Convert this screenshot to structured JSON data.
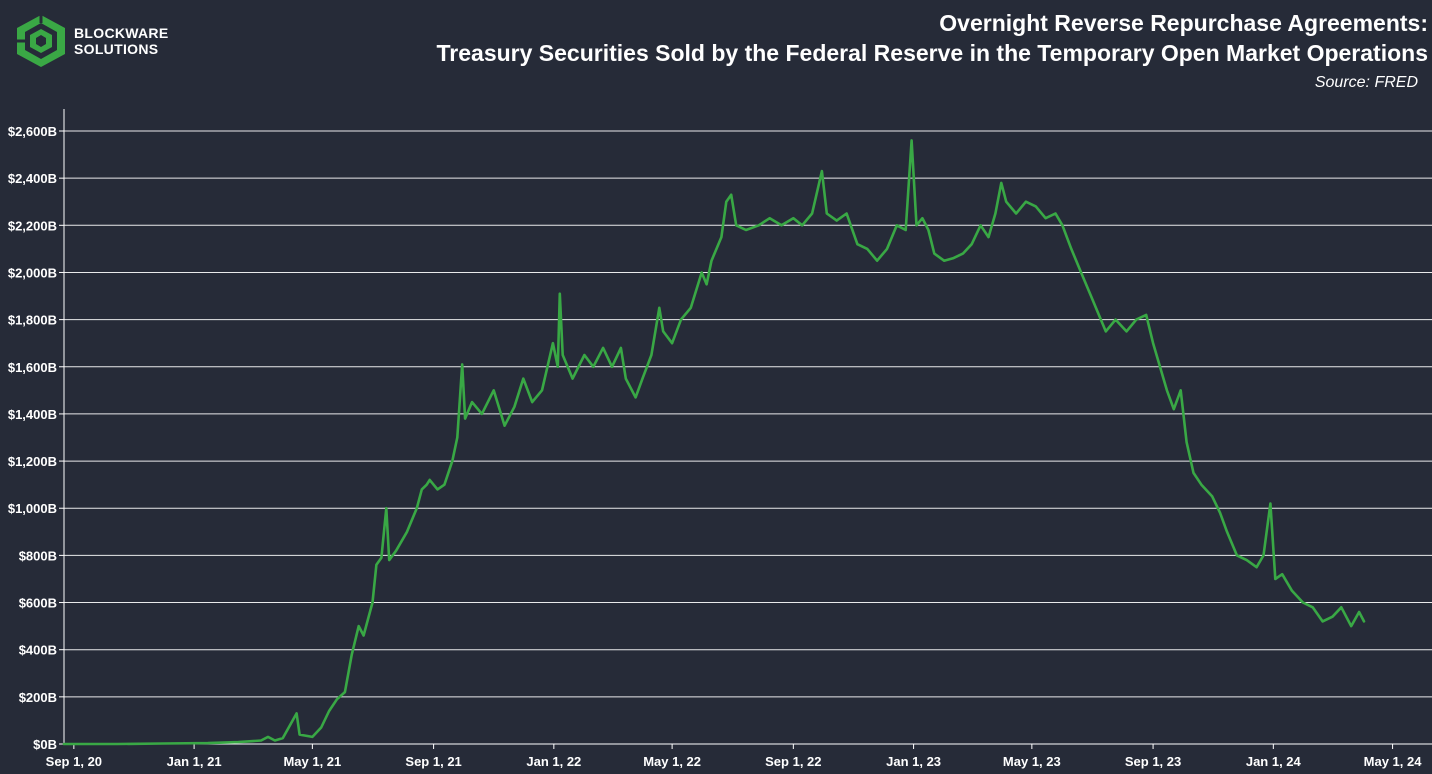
{
  "logo": {
    "line1": "BLOCKWARE",
    "line2": "SOLUTIONS"
  },
  "header": {
    "title_line1": "Overnight Reverse Repurchase Agreements:",
    "title_line2": "Treasury Securities Sold by the Federal Reserve in the Temporary Open Market Operations",
    "source": "Source: FRED"
  },
  "colors": {
    "background": "#262b38",
    "line": "#39a845",
    "grid": "#ffffff",
    "text": "#ffffff"
  },
  "chart_data": {
    "type": "line",
    "title": "Overnight Reverse Repurchase Agreements: Treasury Securities Sold by the Federal Reserve in the Temporary Open Market Operations",
    "xlabel": "",
    "ylabel": "",
    "ylim": [
      0,
      2600
    ],
    "xlim": [
      "2020-08-22",
      "2024-06-10"
    ],
    "grid": true,
    "y_ticks": [
      {
        "value": 0,
        "label": "$0B"
      },
      {
        "value": 200,
        "label": "$200B"
      },
      {
        "value": 400,
        "label": "$400B"
      },
      {
        "value": 600,
        "label": "$600B"
      },
      {
        "value": 800,
        "label": "$800B"
      },
      {
        "value": 1000,
        "label": "$1,000B"
      },
      {
        "value": 1200,
        "label": "$1,200B"
      },
      {
        "value": 1400,
        "label": "$1,400B"
      },
      {
        "value": 1600,
        "label": "$1,600B"
      },
      {
        "value": 1800,
        "label": "$1,800B"
      },
      {
        "value": 2000,
        "label": "$2,000B"
      },
      {
        "value": 2200,
        "label": "$2,200B"
      },
      {
        "value": 2400,
        "label": "$2,400B"
      },
      {
        "value": 2600,
        "label": "$2,600B"
      }
    ],
    "x_ticks": [
      {
        "date": "2020-09-01",
        "label": "Sep 1, 20"
      },
      {
        "date": "2021-01-01",
        "label": "Jan 1, 21"
      },
      {
        "date": "2021-05-01",
        "label": "May 1, 21"
      },
      {
        "date": "2021-09-01",
        "label": "Sep 1, 21"
      },
      {
        "date": "2022-01-01",
        "label": "Jan 1, 22"
      },
      {
        "date": "2022-05-01",
        "label": "May 1, 22"
      },
      {
        "date": "2022-09-01",
        "label": "Sep 1, 22"
      },
      {
        "date": "2023-01-01",
        "label": "Jan 1, 23"
      },
      {
        "date": "2023-05-01",
        "label": "May 1, 23"
      },
      {
        "date": "2023-09-01",
        "label": "Sep 1, 23"
      },
      {
        "date": "2024-01-01",
        "label": "Jan 1, 24"
      },
      {
        "date": "2024-05-01",
        "label": "May 1, 24"
      }
    ],
    "series": [
      {
        "values": [
          [
            "2020-08-22",
            0
          ],
          [
            "2020-10-15",
            0
          ],
          [
            "2020-12-01",
            2
          ],
          [
            "2021-01-15",
            4
          ],
          [
            "2021-02-15",
            8
          ],
          [
            "2021-03-10",
            15
          ],
          [
            "2021-03-17",
            30
          ],
          [
            "2021-03-24",
            15
          ],
          [
            "2021-04-01",
            25
          ],
          [
            "2021-04-15",
            130
          ],
          [
            "2021-04-18",
            40
          ],
          [
            "2021-05-01",
            30
          ],
          [
            "2021-05-10",
            70
          ],
          [
            "2021-05-18",
            140
          ],
          [
            "2021-05-26",
            190
          ],
          [
            "2021-06-03",
            220
          ],
          [
            "2021-06-10",
            380
          ],
          [
            "2021-06-17",
            500
          ],
          [
            "2021-06-22",
            460
          ],
          [
            "2021-07-01",
            600
          ],
          [
            "2021-07-05",
            760
          ],
          [
            "2021-07-10",
            790
          ],
          [
            "2021-07-15",
            1000
          ],
          [
            "2021-07-18",
            780
          ],
          [
            "2021-07-25",
            820
          ],
          [
            "2021-08-05",
            900
          ],
          [
            "2021-08-15",
            1000
          ],
          [
            "2021-08-20",
            1080
          ],
          [
            "2021-08-25",
            1100
          ],
          [
            "2021-08-28",
            1120
          ],
          [
            "2021-09-05",
            1080
          ],
          [
            "2021-09-12",
            1100
          ],
          [
            "2021-09-20",
            1200
          ],
          [
            "2021-09-25",
            1300
          ],
          [
            "2021-09-30",
            1610
          ],
          [
            "2021-10-03",
            1380
          ],
          [
            "2021-10-10",
            1450
          ],
          [
            "2021-10-20",
            1400
          ],
          [
            "2021-11-01",
            1500
          ],
          [
            "2021-11-12",
            1350
          ],
          [
            "2021-11-22",
            1430
          ],
          [
            "2021-12-01",
            1550
          ],
          [
            "2021-12-10",
            1450
          ],
          [
            "2021-12-20",
            1500
          ],
          [
            "2021-12-31",
            1700
          ],
          [
            "2022-01-05",
            1600
          ],
          [
            "2022-01-07",
            1910
          ],
          [
            "2022-01-10",
            1650
          ],
          [
            "2022-01-20",
            1550
          ],
          [
            "2022-02-01",
            1650
          ],
          [
            "2022-02-10",
            1600
          ],
          [
            "2022-02-20",
            1680
          ],
          [
            "2022-03-01",
            1600
          ],
          [
            "2022-03-10",
            1680
          ],
          [
            "2022-03-15",
            1550
          ],
          [
            "2022-03-25",
            1470
          ],
          [
            "2022-04-01",
            1550
          ],
          [
            "2022-04-10",
            1650
          ],
          [
            "2022-04-18",
            1850
          ],
          [
            "2022-04-22",
            1750
          ],
          [
            "2022-05-01",
            1700
          ],
          [
            "2022-05-10",
            1800
          ],
          [
            "2022-05-20",
            1850
          ],
          [
            "2022-05-31",
            2000
          ],
          [
            "2022-06-05",
            1950
          ],
          [
            "2022-06-10",
            2050
          ],
          [
            "2022-06-20",
            2150
          ],
          [
            "2022-06-25",
            2300
          ],
          [
            "2022-06-30",
            2330
          ],
          [
            "2022-07-05",
            2200
          ],
          [
            "2022-07-15",
            2180
          ],
          [
            "2022-07-28",
            2200
          ],
          [
            "2022-08-08",
            2230
          ],
          [
            "2022-08-20",
            2200
          ],
          [
            "2022-09-01",
            2230
          ],
          [
            "2022-09-10",
            2200
          ],
          [
            "2022-09-20",
            2250
          ],
          [
            "2022-09-30",
            2430
          ],
          [
            "2022-10-05",
            2250
          ],
          [
            "2022-10-15",
            2220
          ],
          [
            "2022-10-25",
            2250
          ],
          [
            "2022-11-05",
            2120
          ],
          [
            "2022-11-15",
            2100
          ],
          [
            "2022-11-25",
            2050
          ],
          [
            "2022-12-05",
            2100
          ],
          [
            "2022-12-15",
            2200
          ],
          [
            "2022-12-24",
            2180
          ],
          [
            "2022-12-30",
            2560
          ],
          [
            "2023-01-04",
            2200
          ],
          [
            "2023-01-10",
            2230
          ],
          [
            "2023-01-16",
            2180
          ],
          [
            "2023-01-22",
            2080
          ],
          [
            "2023-02-01",
            2050
          ],
          [
            "2023-02-10",
            2060
          ],
          [
            "2023-02-20",
            2080
          ],
          [
            "2023-03-01",
            2120
          ],
          [
            "2023-03-10",
            2200
          ],
          [
            "2023-03-18",
            2150
          ],
          [
            "2023-03-25",
            2250
          ],
          [
            "2023-03-31",
            2380
          ],
          [
            "2023-04-05",
            2300
          ],
          [
            "2023-04-15",
            2250
          ],
          [
            "2023-04-25",
            2300
          ],
          [
            "2023-05-05",
            2280
          ],
          [
            "2023-05-15",
            2230
          ],
          [
            "2023-05-25",
            2250
          ],
          [
            "2023-06-01",
            2200
          ],
          [
            "2023-06-10",
            2100
          ],
          [
            "2023-06-20",
            2000
          ],
          [
            "2023-06-30",
            1900
          ],
          [
            "2023-07-05",
            1850
          ],
          [
            "2023-07-15",
            1750
          ],
          [
            "2023-07-25",
            1800
          ],
          [
            "2023-08-05",
            1750
          ],
          [
            "2023-08-15",
            1800
          ],
          [
            "2023-08-25",
            1820
          ],
          [
            "2023-09-01",
            1700
          ],
          [
            "2023-09-08",
            1600
          ],
          [
            "2023-09-15",
            1500
          ],
          [
            "2023-09-22",
            1420
          ],
          [
            "2023-09-29",
            1500
          ],
          [
            "2023-10-05",
            1280
          ],
          [
            "2023-10-12",
            1150
          ],
          [
            "2023-10-20",
            1100
          ],
          [
            "2023-10-31",
            1050
          ],
          [
            "2023-11-08",
            980
          ],
          [
            "2023-11-15",
            900
          ],
          [
            "2023-11-25",
            800
          ],
          [
            "2023-12-05",
            780
          ],
          [
            "2023-12-15",
            750
          ],
          [
            "2023-12-22",
            800
          ],
          [
            "2023-12-29",
            1020
          ],
          [
            "2024-01-03",
            700
          ],
          [
            "2024-01-10",
            720
          ],
          [
            "2024-01-20",
            650
          ],
          [
            "2024-01-31",
            600
          ],
          [
            "2024-02-10",
            580
          ],
          [
            "2024-02-20",
            520
          ],
          [
            "2024-03-01",
            540
          ],
          [
            "2024-03-10",
            580
          ],
          [
            "2024-03-20",
            500
          ],
          [
            "2024-03-28",
            560
          ],
          [
            "2024-04-02",
            520
          ]
        ]
      }
    ]
  }
}
